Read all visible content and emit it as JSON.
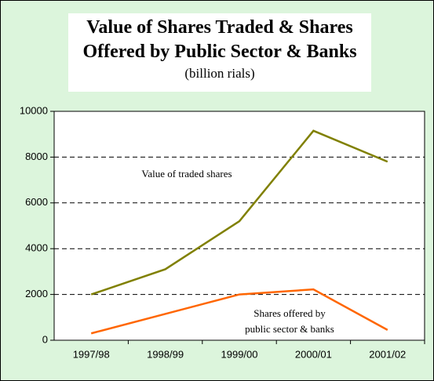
{
  "chart_data": {
    "type": "line",
    "title": "Value of Shares Traded & Shares Offered by Public Sector & Banks",
    "subtitle": "(billion rials)",
    "categories": [
      "1997/98",
      "1998/99",
      "1999/00",
      "2000/01",
      "2001/02"
    ],
    "series": [
      {
        "name": "Value of traded shares",
        "color": "#808000",
        "values": [
          2000,
          3100,
          5200,
          9150,
          7800
        ]
      },
      {
        "name": "Shares offered by public sector & banks",
        "color": "#ff6600",
        "values": [
          300,
          1150,
          2000,
          2220,
          450
        ]
      }
    ],
    "ylim": [
      0,
      10000
    ],
    "yticks": [
      0,
      2000,
      4000,
      6000,
      8000,
      10000
    ],
    "grid": true
  }
}
